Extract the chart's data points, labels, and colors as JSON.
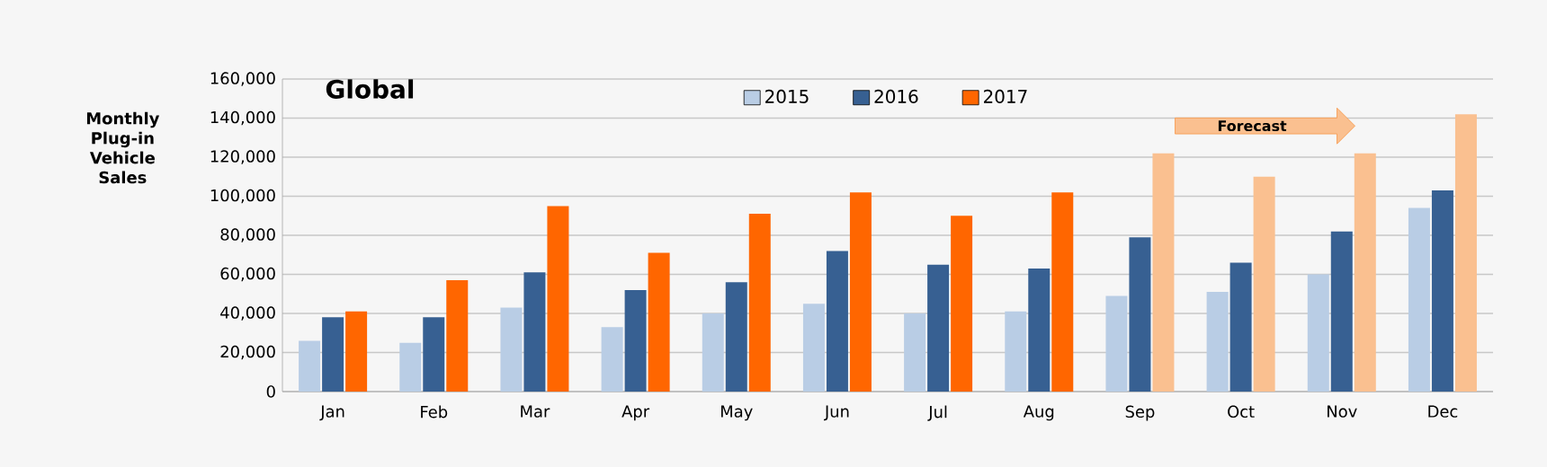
{
  "chart_data": {
    "type": "bar",
    "title": "Global",
    "ylabel": "Monthly Plug-in Vehicle Sales",
    "categories": [
      "Jan",
      "Feb",
      "Mar",
      "Apr",
      "May",
      "Jun",
      "Jul",
      "Aug",
      "Sep",
      "Oct",
      "Nov",
      "Dec"
    ],
    "series": [
      {
        "name": "2015",
        "color": "#b9cde5",
        "values": [
          26000,
          25000,
          43000,
          33000,
          40000,
          45000,
          40000,
          41000,
          49000,
          51000,
          60000,
          94000
        ]
      },
      {
        "name": "2016",
        "color": "#376092",
        "values": [
          38000,
          38000,
          61000,
          52000,
          56000,
          72000,
          65000,
          63000,
          79000,
          66000,
          82000,
          103000
        ]
      },
      {
        "name": "2017",
        "color": "#ff6600",
        "colors": [
          "#ff6600",
          "#ff6600",
          "#ff6600",
          "#ff6600",
          "#ff6600",
          "#ff6600",
          "#ff6600",
          "#ff6600",
          "#fac090",
          "#fac090",
          "#fac090",
          "#fac090"
        ],
        "values": [
          41000,
          57000,
          95000,
          71000,
          91000,
          102000,
          90000,
          102000,
          122000,
          110000,
          122000,
          142000
        ]
      }
    ],
    "ylim": [
      0,
      160000
    ],
    "yticks": [
      0,
      {
        "value": 20000,
        "label": "20,000"
      },
      {
        "value": 40000,
        "label": "40,000"
      },
      {
        "value": 60000,
        "label": "60,000"
      },
      {
        "value": 80000,
        "label": "80,000"
      },
      {
        "value": 100000,
        "label": "100,000"
      },
      {
        "value": 120000,
        "label": "120,000"
      },
      {
        "value": 140000,
        "label": "140,000"
      },
      {
        "value": 160000,
        "label": "160,000"
      }
    ],
    "grid": "y",
    "legend": "top",
    "annotations": [
      "Forecast"
    ]
  }
}
